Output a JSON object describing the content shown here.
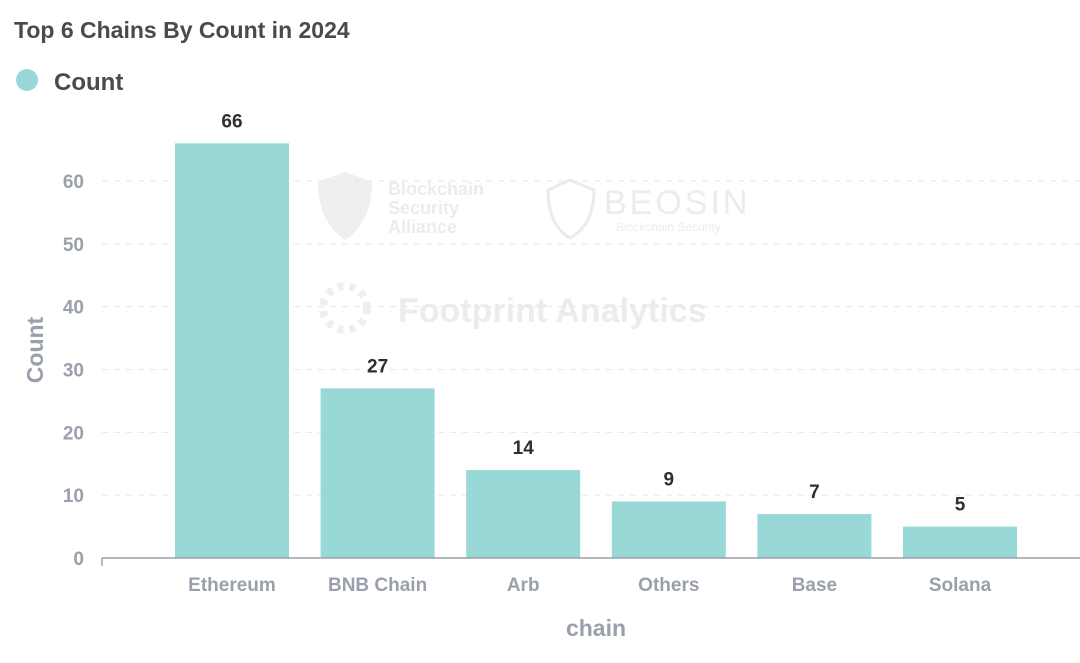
{
  "chart_data": {
    "type": "bar",
    "title": "Top 6 Chains By Count in 2024",
    "legend": [
      {
        "name": "Count",
        "color": "#98d9d7"
      }
    ],
    "legend_position": "top-left",
    "categories": [
      "Ethereum",
      "BNB Chain",
      "Arb",
      "Others",
      "Base",
      "Solana"
    ],
    "values": [
      66,
      27,
      14,
      9,
      7,
      5
    ],
    "xlabel": "chain",
    "ylabel": "Count",
    "ylim": [
      0,
      66
    ],
    "yticks": [
      0,
      10,
      20,
      30,
      40,
      50,
      60
    ],
    "grid": true,
    "bar_color": "#98d9d7"
  },
  "watermarks": {
    "bsa": [
      "Blockchain",
      "Security",
      "Alliance"
    ],
    "beosin": "BEOSIN",
    "beosin_sub": "Blockchain Security",
    "footprint": "Footprint Analytics"
  }
}
